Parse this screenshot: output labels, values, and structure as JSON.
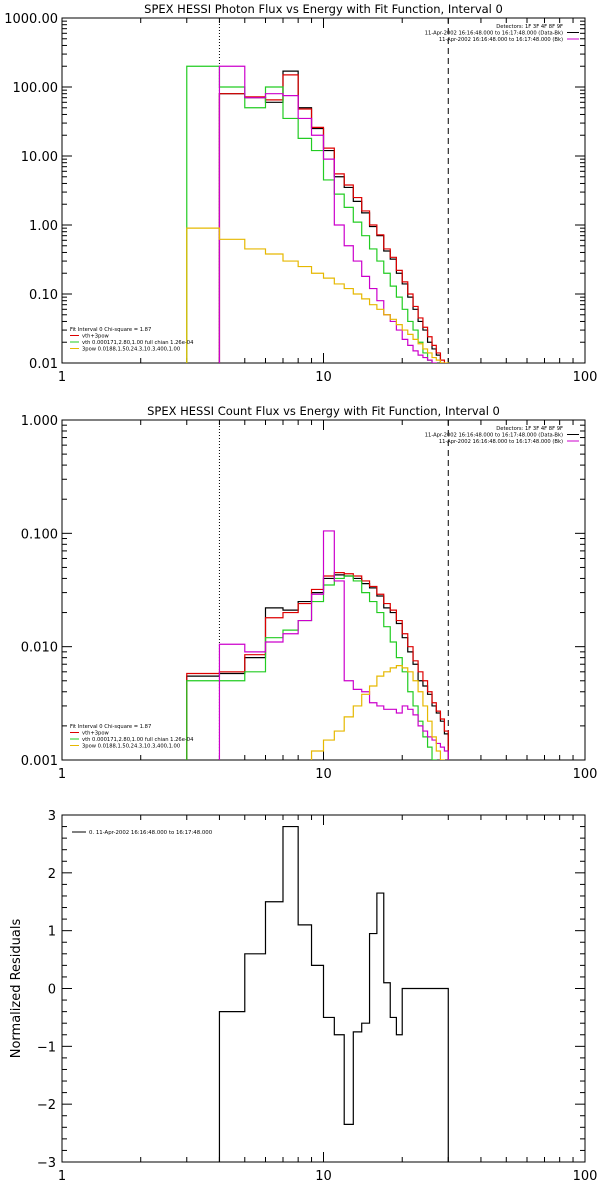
{
  "chart_data": [
    {
      "type": "line",
      "title": "SPEX HESSI Photon Flux vs Energy with Fit Function, Interval 0",
      "xscale": "log",
      "yscale": "log",
      "xlim": [
        1,
        100
      ],
      "ylim": [
        0.01,
        1000
      ],
      "x_ticks": [
        "1",
        "10",
        "100"
      ],
      "y_ticks": [
        "0.01",
        "0.10",
        "1.00",
        "10.00",
        "100.00",
        "1000.00"
      ],
      "vlines": [
        {
          "x": 4.0,
          "style": "dotted"
        },
        {
          "x": 30.0,
          "style": "dashed"
        }
      ],
      "info": [
        "Detectors: 1F 3F 4F 8F 9F",
        "11-Apr-2002 16:16:48.000 to 16:17:48.000 (Data-Bk)",
        "11-Apr-2002 16:16:48.000 to 16:17:48.000 (Bk)"
      ],
      "fit_info": [
        "Fit Interval 0   Chi-square = 1.87",
        "vth+3pow",
        "vth 0.000171,2.80,1.00  full chian 1.26e-04",
        "3pow 0.0188,1.50,24.3,10.3,400,1.00"
      ],
      "series": [
        {
          "color": "#000000",
          "edges": [
            4,
            5,
            6,
            7,
            8,
            9,
            10,
            11,
            12,
            13,
            14,
            15,
            16,
            17,
            18,
            19,
            20,
            21,
            22,
            23,
            24,
            25,
            26,
            27,
            28,
            29,
            30
          ],
          "values": [
            80,
            70,
            60,
            170,
            50,
            25,
            12,
            5,
            3.5,
            2.2,
            1.5,
            0.95,
            0.7,
            0.42,
            0.32,
            0.2,
            0.14,
            0.09,
            0.06,
            0.04,
            0.03,
            0.02,
            0.016,
            0.013,
            0.01,
            0.009
          ]
        },
        {
          "color": "#dd0000",
          "edges": [
            4,
            5,
            6,
            7,
            8,
            9,
            10,
            11,
            12,
            13,
            14,
            15,
            16,
            17,
            18,
            19,
            20,
            21,
            22,
            23,
            24,
            25,
            26,
            27,
            28,
            29,
            30
          ],
          "values": [
            80,
            72,
            65,
            150,
            48,
            26,
            13,
            5.5,
            3.8,
            2.5,
            1.6,
            1.0,
            0.72,
            0.45,
            0.34,
            0.22,
            0.15,
            0.1,
            0.066,
            0.045,
            0.033,
            0.024,
            0.018,
            0.014,
            0.011,
            0.009
          ]
        },
        {
          "color": "#22cc22",
          "edges": [
            3,
            4,
            5,
            6,
            7,
            8,
            9,
            10,
            11,
            12,
            13,
            14,
            15,
            16,
            17,
            18,
            19,
            20,
            21,
            22,
            23,
            24,
            25,
            26,
            27
          ],
          "values": [
            200,
            100,
            50,
            100,
            35,
            18,
            12,
            4.5,
            2.8,
            1.8,
            1.1,
            0.7,
            0.45,
            0.3,
            0.2,
            0.13,
            0.09,
            0.06,
            0.04,
            0.03,
            0.02,
            0.014,
            0.011,
            0.008
          ]
        },
        {
          "color": "#cc00cc",
          "edges": [
            4,
            5,
            6,
            7,
            8,
            9,
            10,
            11,
            12,
            13,
            14,
            15,
            16,
            17,
            18,
            19,
            20,
            21,
            22,
            23,
            24,
            25,
            26,
            27,
            28,
            29,
            30
          ],
          "values": [
            200,
            70,
            80,
            75,
            35,
            20,
            9,
            1,
            0.5,
            0.3,
            0.18,
            0.12,
            0.08,
            0.05,
            0.04,
            0.03,
            0.022,
            0.018,
            0.015,
            0.013,
            0.012,
            0.011,
            0.01,
            0.009,
            0.009,
            0.008
          ]
        },
        {
          "color": "#e6b800",
          "edges": [
            3,
            4,
            5,
            6,
            7,
            8,
            9,
            10,
            11,
            12,
            13,
            14,
            15,
            16,
            17,
            18,
            19,
            20,
            21,
            22,
            23,
            24,
            25,
            26,
            27,
            28,
            29,
            30
          ],
          "values": [
            0.9,
            0.62,
            0.45,
            0.38,
            0.3,
            0.25,
            0.2,
            0.17,
            0.14,
            0.12,
            0.1,
            0.085,
            0.07,
            0.06,
            0.05,
            0.043,
            0.036,
            0.03,
            0.026,
            0.022,
            0.019,
            0.016,
            0.014,
            0.012,
            0.011,
            0.01,
            0.01
          ]
        }
      ]
    },
    {
      "type": "line",
      "title": "SPEX HESSI Count Flux vs Energy with Fit Function, Interval 0",
      "xscale": "log",
      "yscale": "log",
      "xlim": [
        1,
        100
      ],
      "ylim": [
        0.001,
        1
      ],
      "x_ticks": [
        "1",
        "10",
        "100"
      ],
      "y_ticks": [
        "0.001",
        "0.010",
        "0.100",
        "1.000"
      ],
      "vlines": [
        {
          "x": 4.0,
          "style": "dotted"
        },
        {
          "x": 30.0,
          "style": "dashed"
        }
      ],
      "info": [
        "Detectors: 1F 3F 4F 8F 9F",
        "11-Apr-2002 16:16:48.000 to 16:17:48.000 (Data-Bk)",
        "11-Apr-2002 16:16:48.000 to 16:17:48.000 (Bk)"
      ],
      "fit_info": [
        "Fit Interval 0   Chi-square = 1.87",
        "vth+3pow",
        "vth 0.000171,2.80,1.00  full chian 1.26e-04",
        "3pow 0.0188,1.50,24.3,10.3,400,1.00"
      ],
      "series": [
        {
          "color": "#000000",
          "edges": [
            3,
            4,
            5,
            6,
            7,
            8,
            9,
            10,
            11,
            12,
            13,
            14,
            15,
            16,
            17,
            18,
            19,
            20,
            21,
            22,
            23,
            24,
            25,
            26,
            27,
            28,
            29,
            30
          ],
          "values": [
            0.0055,
            0.0058,
            0.008,
            0.022,
            0.021,
            0.025,
            0.03,
            0.04,
            0.043,
            0.042,
            0.04,
            0.036,
            0.033,
            0.028,
            0.022,
            0.02,
            0.016,
            0.012,
            0.009,
            0.007,
            0.005,
            0.0045,
            0.0038,
            0.003,
            0.0026,
            0.0022,
            0.0017
          ]
        },
        {
          "color": "#dd0000",
          "edges": [
            3,
            4,
            5,
            6,
            7,
            8,
            9,
            10,
            11,
            12,
            13,
            14,
            15,
            16,
            17,
            18,
            19,
            20,
            21,
            22,
            23,
            24,
            25,
            26,
            27,
            28,
            29,
            30
          ],
          "values": [
            0.0058,
            0.006,
            0.0085,
            0.018,
            0.02,
            0.024,
            0.032,
            0.042,
            0.045,
            0.044,
            0.042,
            0.038,
            0.034,
            0.029,
            0.024,
            0.021,
            0.017,
            0.013,
            0.01,
            0.0075,
            0.006,
            0.005,
            0.004,
            0.0032,
            0.0027,
            0.0023,
            0.0018
          ]
        },
        {
          "color": "#22cc22",
          "edges": [
            3,
            4,
            5,
            6,
            7,
            8,
            9,
            10,
            11,
            12,
            13,
            14,
            15,
            16,
            17,
            18,
            19,
            20,
            21,
            22,
            23,
            24,
            25,
            26,
            27
          ],
          "values": [
            0.005,
            0.005,
            0.006,
            0.012,
            0.014,
            0.017,
            0.025,
            0.035,
            0.04,
            0.042,
            0.038,
            0.03,
            0.025,
            0.02,
            0.015,
            0.011,
            0.008,
            0.006,
            0.004,
            0.003,
            0.0022,
            0.0016,
            0.0013,
            0.001
          ]
        },
        {
          "color": "#cc00cc",
          "edges": [
            4,
            5,
            6,
            7,
            8,
            9,
            10,
            11,
            12,
            13,
            14,
            15,
            16,
            17,
            18,
            19,
            20,
            21,
            22,
            23,
            24,
            25,
            26,
            27,
            28,
            29,
            30
          ],
          "values": [
            0.0105,
            0.009,
            0.011,
            0.013,
            0.017,
            0.029,
            0.105,
            0.038,
            0.005,
            0.0042,
            0.004,
            0.0032,
            0.003,
            0.0028,
            0.0028,
            0.0026,
            0.003,
            0.0028,
            0.0025,
            0.002,
            0.0018,
            0.0016,
            0.0015,
            0.0014,
            0.0013,
            0.0012
          ]
        },
        {
          "color": "#e6b800",
          "edges": [
            9,
            10,
            11,
            12,
            13,
            14,
            15,
            16,
            17,
            18,
            19,
            20,
            21,
            22,
            23,
            24,
            25,
            26,
            27,
            28,
            29
          ],
          "values": [
            0.0012,
            0.0015,
            0.0018,
            0.0024,
            0.003,
            0.0038,
            0.0045,
            0.0055,
            0.006,
            0.0065,
            0.0068,
            0.0065,
            0.006,
            0.005,
            0.004,
            0.003,
            0.0022,
            0.0016,
            0.0012,
            0.001
          ]
        }
      ]
    },
    {
      "type": "line",
      "title": "",
      "xscale": "log",
      "xlim": [
        1,
        100
      ],
      "ylim": [
        -3,
        3
      ],
      "x_ticks": [
        "1",
        "10",
        "100"
      ],
      "y_ticks": [
        "−3",
        "−2",
        "−1",
        "0",
        "1",
        "2",
        "3"
      ],
      "ylabel": "Normalized Residuals",
      "legend": "0. 11-Apr-2002 16:16:48.000 to 16:17:48.000",
      "series": [
        {
          "color": "#000000",
          "edges": [
            4,
            5,
            6,
            7,
            8,
            9,
            10,
            11,
            12,
            13,
            14,
            15,
            16,
            17,
            18,
            19,
            20,
            21,
            22,
            23,
            24,
            25,
            26,
            27,
            28,
            29,
            30
          ],
          "values": [
            -0.4,
            0.6,
            1.5,
            2.8,
            1.1,
            0.4,
            -0.5,
            -0.8,
            -2.35,
            -0.75,
            -0.6,
            0.95,
            1.65,
            0.1,
            -0.5,
            -0.8,
            0.0,
            0.0,
            0.0,
            0.0,
            0.0,
            0.0,
            0.0,
            0.0,
            0.0,
            0.0
          ]
        }
      ]
    }
  ]
}
